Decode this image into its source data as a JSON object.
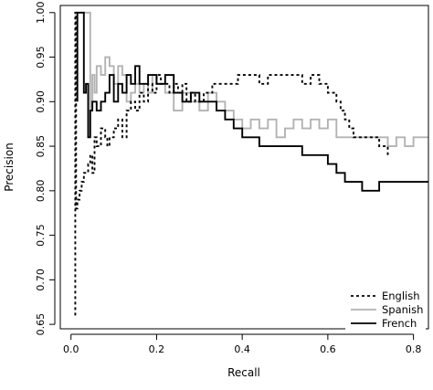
{
  "chart_data": {
    "type": "line",
    "title": "",
    "xlabel": "Recall",
    "ylabel": "Precision",
    "xlim": [
      -0.025,
      0.835
    ],
    "ylim": [
      0.645,
      1.008
    ],
    "xticks": [
      0,
      0.2,
      0.4,
      0.6,
      0.8
    ],
    "xtick_labels": [
      "0.0",
      "0.2",
      "0.4",
      "0.6",
      "0.8"
    ],
    "yticks": [
      0.65,
      0.7,
      0.75,
      0.8,
      0.85,
      0.9,
      0.95,
      1.0
    ],
    "ytick_labels": [
      "0.65",
      "0.70",
      "0.75",
      "0.80",
      "0.85",
      "0.90",
      "0.95",
      "1.00"
    ],
    "grid": false,
    "legend_position": "bottom-right",
    "series": [
      {
        "name": "English",
        "color": "#000000",
        "line_style": "dashed",
        "x": [
          0.01,
          0.01,
          0.012,
          0.012,
          0.015,
          0.015,
          0.02,
          0.025,
          0.03,
          0.04,
          0.045,
          0.05,
          0.055,
          0.06,
          0.07,
          0.08,
          0.085,
          0.09,
          0.1,
          0.11,
          0.12,
          0.13,
          0.14,
          0.15,
          0.16,
          0.17,
          0.18,
          0.19,
          0.2,
          0.21,
          0.22,
          0.23,
          0.24,
          0.25,
          0.26,
          0.27,
          0.28,
          0.29,
          0.3,
          0.31,
          0.32,
          0.33,
          0.35,
          0.37,
          0.39,
          0.4,
          0.42,
          0.44,
          0.46,
          0.48,
          0.5,
          0.52,
          0.53,
          0.54,
          0.55,
          0.56,
          0.58,
          0.59,
          0.6,
          0.61,
          0.62,
          0.63,
          0.64,
          0.65,
          0.66,
          0.68,
          0.7,
          0.71,
          0.72,
          0.73,
          0.74
        ],
        "y": [
          0.66,
          1.0,
          1.0,
          0.78,
          0.78,
          0.79,
          0.8,
          0.81,
          0.82,
          0.83,
          0.84,
          0.82,
          0.86,
          0.85,
          0.87,
          0.86,
          0.85,
          0.86,
          0.87,
          0.88,
          0.86,
          0.89,
          0.9,
          0.89,
          0.91,
          0.9,
          0.92,
          0.91,
          0.93,
          0.92,
          0.92,
          0.91,
          0.92,
          0.91,
          0.92,
          0.9,
          0.91,
          0.9,
          0.9,
          0.91,
          0.91,
          0.92,
          0.92,
          0.92,
          0.93,
          0.93,
          0.93,
          0.92,
          0.93,
          0.93,
          0.93,
          0.93,
          0.93,
          0.92,
          0.92,
          0.93,
          0.92,
          0.92,
          0.91,
          0.91,
          0.9,
          0.89,
          0.88,
          0.87,
          0.86,
          0.86,
          0.86,
          0.86,
          0.85,
          0.85,
          0.84
        ]
      },
      {
        "name": "Spanish",
        "color": "#b3b3b3",
        "line_style": "solid",
        "x": [
          0.02,
          0.045,
          0.045,
          0.05,
          0.055,
          0.06,
          0.07,
          0.08,
          0.09,
          0.1,
          0.11,
          0.12,
          0.13,
          0.14,
          0.15,
          0.16,
          0.17,
          0.18,
          0.19,
          0.2,
          0.22,
          0.24,
          0.26,
          0.28,
          0.3,
          0.32,
          0.34,
          0.36,
          0.38,
          0.4,
          0.42,
          0.44,
          0.46,
          0.48,
          0.5,
          0.52,
          0.54,
          0.56,
          0.58,
          0.6,
          0.62,
          0.64,
          0.66,
          0.68,
          0.7,
          0.72,
          0.74,
          0.76,
          0.78,
          0.8,
          0.82,
          0.835
        ],
        "y": [
          1.0,
          1.0,
          0.89,
          0.93,
          0.91,
          0.94,
          0.93,
          0.95,
          0.94,
          0.92,
          0.94,
          0.93,
          0.9,
          0.91,
          0.92,
          0.91,
          0.92,
          0.91,
          0.93,
          0.92,
          0.91,
          0.89,
          0.91,
          0.9,
          0.89,
          0.91,
          0.9,
          0.89,
          0.88,
          0.87,
          0.88,
          0.87,
          0.88,
          0.86,
          0.87,
          0.88,
          0.87,
          0.88,
          0.87,
          0.88,
          0.86,
          0.86,
          0.86,
          0.86,
          0.86,
          0.86,
          0.85,
          0.86,
          0.85,
          0.86,
          0.86,
          0.86
        ]
      },
      {
        "name": "French",
        "color": "#000000",
        "line_style": "solid",
        "x": [
          0.015,
          0.015,
          0.03,
          0.03,
          0.035,
          0.04,
          0.04,
          0.045,
          0.05,
          0.06,
          0.07,
          0.08,
          0.09,
          0.1,
          0.11,
          0.12,
          0.13,
          0.14,
          0.15,
          0.16,
          0.17,
          0.18,
          0.2,
          0.22,
          0.24,
          0.26,
          0.28,
          0.3,
          0.32,
          0.34,
          0.36,
          0.38,
          0.4,
          0.42,
          0.44,
          0.46,
          0.48,
          0.5,
          0.52,
          0.54,
          0.56,
          0.58,
          0.6,
          0.62,
          0.64,
          0.66,
          0.68,
          0.7,
          0.72,
          0.74,
          0.76,
          0.78,
          0.8,
          0.835
        ],
        "y": [
          0.9,
          1.0,
          1.0,
          0.91,
          0.92,
          0.89,
          0.86,
          0.89,
          0.9,
          0.89,
          0.9,
          0.91,
          0.93,
          0.9,
          0.92,
          0.91,
          0.93,
          0.92,
          0.94,
          0.92,
          0.92,
          0.93,
          0.92,
          0.93,
          0.91,
          0.9,
          0.91,
          0.9,
          0.9,
          0.89,
          0.88,
          0.87,
          0.86,
          0.86,
          0.85,
          0.85,
          0.85,
          0.85,
          0.85,
          0.84,
          0.84,
          0.84,
          0.83,
          0.82,
          0.81,
          0.81,
          0.8,
          0.8,
          0.81,
          0.81,
          0.81,
          0.81,
          0.81,
          0.81
        ]
      }
    ]
  }
}
